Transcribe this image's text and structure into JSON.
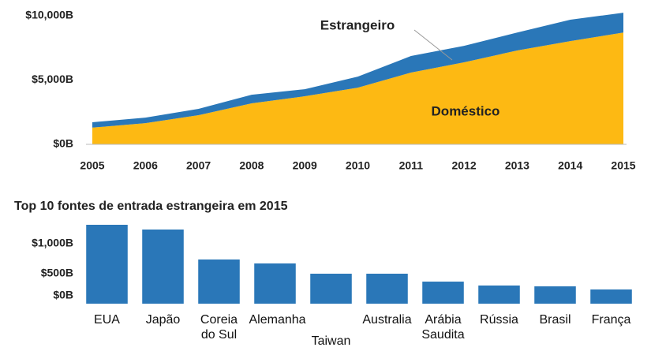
{
  "chart_data": [
    {
      "type": "stacked_area",
      "x": [
        2005,
        2006,
        2007,
        2008,
        2009,
        2010,
        2011,
        2012,
        2013,
        2014,
        2015
      ],
      "series": [
        {
          "name": "Doméstico",
          "color": "#fdb913",
          "values": [
            1300,
            1650,
            2270,
            3190,
            3740,
            4410,
            5580,
            6380,
            7300,
            8030,
            8700
          ]
        },
        {
          "name": "Estrangeiro",
          "color": "#2a77b8",
          "values": [
            420,
            430,
            490,
            670,
            550,
            860,
            1290,
            1280,
            1400,
            1660,
            1540
          ]
        }
      ],
      "ylim": [
        0,
        10000
      ],
      "yticks": [
        {
          "value": 0,
          "label": "$0B"
        },
        {
          "value": 5000,
          "label": "$5,000B"
        },
        {
          "value": 10000,
          "label": "$10,000B"
        }
      ]
    },
    {
      "type": "bar",
      "title": "Top 10 fontes de entrada estrangeira em 2015",
      "categories": [
        "EUA",
        "Japão",
        "Coreia do Sul",
        "Alemanha",
        "Taiwan",
        "Australia",
        "Arábia Saudita",
        "Rússia",
        "Brasil",
        "França"
      ],
      "values": [
        1316,
        1237,
        737,
        671,
        500,
        500,
        368,
        303,
        289,
        237
      ],
      "color": "#2a77b8",
      "ylim": [
        0,
        1400
      ],
      "yticks": [
        {
          "value": 0,
          "label": "$0B"
        },
        {
          "value": 500,
          "label": "$500B"
        },
        {
          "value": 1000,
          "label": "$1,000B"
        }
      ]
    }
  ]
}
